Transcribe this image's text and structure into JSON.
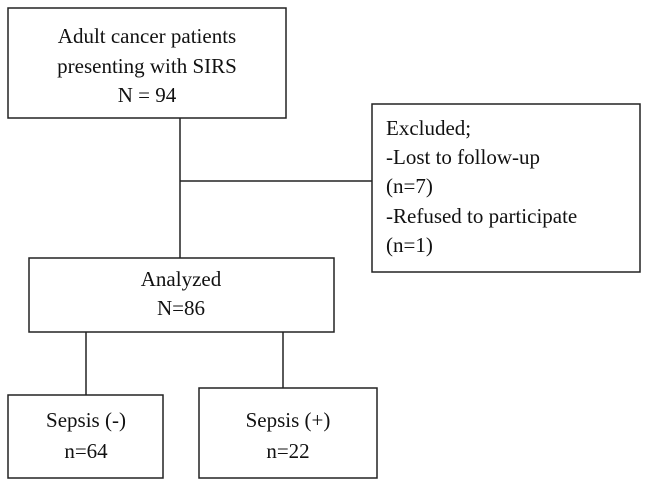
{
  "nodes": [
    {
      "lines": [
        "Adult cancer patients",
        "presenting with SIRS",
        "N = 94"
      ]
    },
    {
      "lines": [
        "Excluded;",
        "-Lost to follow-up",
        "(n=7)",
        "-Refused to participate",
        "(n=1)"
      ]
    },
    {
      "lines": [
        "Analyzed",
        "N=86"
      ]
    },
    {
      "lines": [
        "Sepsis (-)",
        "n=64"
      ]
    },
    {
      "lines": [
        "Sepsis (+)",
        "n=22"
      ]
    }
  ]
}
